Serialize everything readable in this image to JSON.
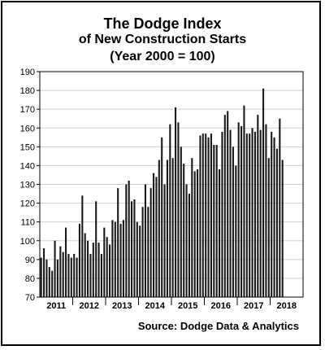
{
  "chart_data": {
    "type": "bar",
    "title": "The Dodge Index",
    "subtitle_1": "of New Construction Starts",
    "subtitle_2": "(Year 2000 = 100)",
    "source": "Source:  Dodge Data & Analytics",
    "ylim": [
      70,
      190
    ],
    "yticks": [
      70,
      80,
      90,
      100,
      110,
      120,
      130,
      140,
      150,
      160,
      170,
      180,
      190
    ],
    "year_labels": [
      "2011",
      "2012",
      "2013",
      "2014",
      "2015",
      "2016",
      "2017",
      "2018"
    ],
    "start": "2011-01",
    "bar_color": "#1a1a1a",
    "values": [
      91,
      96,
      90,
      86,
      84,
      100,
      90,
      97,
      94,
      107,
      93,
      91,
      93,
      91,
      109,
      124,
      104,
      100,
      93,
      99,
      121,
      99,
      93,
      107,
      102,
      98,
      111,
      110,
      128,
      109,
      111,
      130,
      132,
      121,
      122,
      110,
      108,
      118,
      130,
      118,
      128,
      136,
      134,
      143,
      155,
      130,
      143,
      162,
      144,
      171,
      163,
      150,
      141,
      130,
      125,
      144,
      137,
      138,
      156,
      157,
      157,
      155,
      157,
      151,
      151,
      138,
      158,
      167,
      169,
      159,
      150,
      140,
      163,
      161,
      172,
      157,
      157,
      160,
      158,
      167,
      159,
      181,
      162,
      144,
      158,
      155,
      149,
      165,
      143
    ]
  }
}
